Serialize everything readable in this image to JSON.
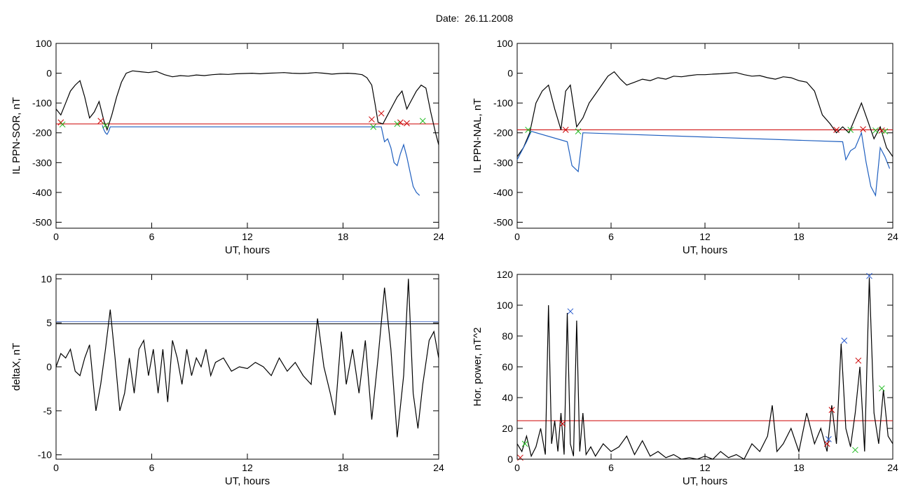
{
  "page": {
    "title": "Date:  26.11.2008"
  },
  "chart_data": [
    {
      "id": "il-sor",
      "type": "line",
      "xlabel": "UT, hours",
      "ylabel": "IL PPN-SOR, nT",
      "xlim": [
        0,
        24
      ],
      "ylim": [
        -520,
        100
      ],
      "xticks": [
        "0",
        "6",
        "12",
        "18",
        "24"
      ],
      "yticks": [
        "100",
        "0",
        "-100",
        "-200",
        "-300",
        "-400",
        "-500"
      ],
      "grid": false,
      "threshold": -170,
      "series": [
        {
          "color": "#000000",
          "x": [
            0,
            0.3,
            0.6,
            0.9,
            1.2,
            1.5,
            1.8,
            2.1,
            2.4,
            2.7,
            3.0,
            3.2,
            3.5,
            3.8,
            4.1,
            4.4,
            4.8,
            5.3,
            5.8,
            6.3,
            6.8,
            7.3,
            7.8,
            8.3,
            8.8,
            9.3,
            9.8,
            10.3,
            10.8,
            11.3,
            11.8,
            12.3,
            12.8,
            13.3,
            13.8,
            14.3,
            14.8,
            15.3,
            15.8,
            16.3,
            16.8,
            17.3,
            17.8,
            18.3,
            18.8,
            19.2,
            19.5,
            19.8,
            20.0,
            20.2,
            20.5,
            20.8,
            21.1,
            21.4,
            21.7,
            22.0,
            22.3,
            22.6,
            22.9,
            23.2,
            23.5,
            23.8,
            24.0
          ],
          "y": [
            -120,
            -140,
            -100,
            -60,
            -40,
            -25,
            -80,
            -150,
            -130,
            -95,
            -160,
            -190,
            -140,
            -80,
            -30,
            0,
            8,
            5,
            2,
            6,
            -5,
            -12,
            -8,
            -10,
            -6,
            -8,
            -5,
            -3,
            -4,
            -2,
            -1,
            0,
            -2,
            0,
            1,
            2,
            0,
            -1,
            0,
            2,
            0,
            -3,
            -1,
            0,
            -2,
            -5,
            -15,
            -40,
            -100,
            -165,
            -170,
            -140,
            -110,
            -80,
            -60,
            -120,
            -90,
            -60,
            -40,
            -50,
            -130,
            -200,
            -240
          ]
        },
        {
          "color": "#1f5fbf",
          "x": [
            2.9,
            3.0,
            3.1,
            3.2,
            3.3,
            3.4,
            20.4,
            20.6,
            20.8,
            21.0,
            21.2,
            21.4,
            21.6,
            21.8,
            22.0,
            22.2,
            22.4,
            22.6,
            22.8
          ],
          "y": [
            -175,
            -190,
            -200,
            -205,
            -195,
            -180,
            -180,
            -230,
            -220,
            -250,
            -300,
            -310,
            -270,
            -240,
            -280,
            -330,
            -380,
            -400,
            -410
          ]
        }
      ],
      "markers_red": {
        "x": [
          0.3,
          2.8,
          19.8,
          20.4,
          21.6,
          22.0
        ],
        "y": [
          -165,
          -160,
          -155,
          -135,
          -165,
          -168
        ]
      },
      "markers_green": {
        "x": [
          0.4,
          3.1,
          19.9,
          21.4,
          23.0
        ],
        "y": [
          -172,
          -175,
          -180,
          -170,
          -160
        ]
      }
    },
    {
      "id": "il-nal",
      "type": "line",
      "xlabel": "UT, hours",
      "ylabel": "IL PPN-NAL, nT",
      "xlim": [
        0,
        24
      ],
      "ylim": [
        -520,
        100
      ],
      "xticks": [
        "0",
        "6",
        "12",
        "18",
        "24"
      ],
      "yticks": [
        "100",
        "0",
        "-100",
        "-200",
        "-300",
        "-400",
        "-500"
      ],
      "grid": false,
      "threshold": -190,
      "series": [
        {
          "color": "#000000",
          "x": [
            0,
            0.4,
            0.8,
            1.2,
            1.6,
            2.0,
            2.4,
            2.8,
            3.1,
            3.4,
            3.8,
            4.2,
            4.6,
            5.0,
            5.4,
            5.8,
            6.2,
            6.6,
            7.0,
            7.5,
            8.0,
            8.5,
            9.0,
            9.5,
            10.0,
            10.5,
            11.0,
            11.5,
            12.0,
            12.5,
            13.0,
            13.5,
            14.0,
            14.5,
            15.0,
            15.5,
            16.0,
            16.5,
            17.0,
            17.5,
            18.0,
            18.5,
            19.0,
            19.5,
            20.0,
            20.4,
            20.8,
            21.2,
            21.6,
            22.0,
            22.4,
            22.8,
            23.2,
            23.6,
            24.0
          ],
          "y": [
            -280,
            -250,
            -200,
            -100,
            -60,
            -40,
            -120,
            -190,
            -60,
            -40,
            -180,
            -150,
            -100,
            -70,
            -40,
            -10,
            5,
            -20,
            -40,
            -30,
            -20,
            -25,
            -15,
            -20,
            -10,
            -12,
            -8,
            -5,
            -5,
            -3,
            -2,
            0,
            2,
            -5,
            -10,
            -8,
            -15,
            -20,
            -12,
            -15,
            -25,
            -30,
            -60,
            -140,
            -170,
            -200,
            -180,
            -200,
            -150,
            -100,
            -160,
            -220,
            -180,
            -250,
            -280
          ]
        },
        {
          "color": "#1f5fbf",
          "x": [
            0.0,
            0.3,
            0.6,
            0.9,
            3.2,
            3.5,
            3.9,
            4.2,
            20.8,
            21.0,
            21.3,
            21.6,
            22.0,
            22.3,
            22.6,
            22.9,
            23.2,
            23.5,
            23.8
          ],
          "y": [
            -290,
            -260,
            -230,
            -195,
            -230,
            -310,
            -330,
            -200,
            -230,
            -290,
            -260,
            -250,
            -200,
            -300,
            -380,
            -410,
            -250,
            -280,
            -320
          ]
        }
      ],
      "markers_red": {
        "x": [
          3.1,
          20.4,
          22.1,
          23.3
        ],
        "y": [
          -190,
          -190,
          -188,
          -192
        ]
      },
      "markers_green": {
        "x": [
          0.7,
          3.9,
          21.3,
          22.9,
          23.5
        ],
        "y": [
          -190,
          -195,
          -190,
          -192,
          -195
        ]
      }
    },
    {
      "id": "deltax",
      "type": "line",
      "xlabel": "UT, hours",
      "ylabel": "deltaX, nT",
      "xlim": [
        0,
        24
      ],
      "ylim": [
        -10.5,
        10.5
      ],
      "xticks": [
        "0",
        "6",
        "12",
        "18",
        "24"
      ],
      "yticks": [
        "10",
        "5",
        "0",
        "-5",
        "-10"
      ],
      "grid": false,
      "threshold": 5,
      "threshold_color": "#000000",
      "series": [
        {
          "color": "#000000",
          "x": [
            0,
            0.3,
            0.6,
            0.9,
            1.2,
            1.5,
            1.8,
            2.1,
            2.5,
            2.8,
            3.1,
            3.4,
            3.7,
            4.0,
            4.3,
            4.6,
            4.9,
            5.2,
            5.5,
            5.8,
            6.1,
            6.4,
            6.7,
            7.0,
            7.3,
            7.6,
            7.9,
            8.2,
            8.5,
            8.8,
            9.1,
            9.4,
            9.7,
            10.0,
            10.5,
            11.0,
            11.5,
            12.0,
            12.5,
            13.0,
            13.5,
            14.0,
            14.5,
            15.0,
            15.5,
            16.0,
            16.4,
            16.8,
            17.2,
            17.5,
            17.9,
            18.2,
            18.6,
            19.0,
            19.4,
            19.8,
            20.2,
            20.6,
            21.0,
            21.4,
            21.8,
            22.1,
            22.4,
            22.7,
            23.0,
            23.4,
            23.7,
            24.0
          ],
          "y": [
            0,
            1.5,
            1,
            2,
            -0.5,
            -1,
            1,
            2.5,
            -5,
            -2,
            2,
            6.5,
            1,
            -5,
            -3,
            1,
            -3,
            2,
            3,
            -1,
            2,
            -3,
            2,
            -4,
            3,
            1,
            -2,
            2,
            -1,
            1,
            0,
            2,
            -1,
            0.5,
            1,
            -0.5,
            0,
            -0.2,
            0.5,
            0,
            -1,
            1,
            -0.5,
            0.5,
            -1,
            -2,
            5.5,
            0,
            -3,
            -5.5,
            4,
            -2,
            2,
            -3,
            3,
            -6,
            1,
            9,
            2,
            -8,
            -1,
            10,
            -3,
            -7,
            -2,
            3,
            4,
            1
          ]
        }
      ],
      "markers_red": {
        "x": [],
        "y": []
      },
      "markers_green": {
        "x": [],
        "y": []
      }
    },
    {
      "id": "hor-power",
      "type": "line",
      "xlabel": "UT, hours",
      "ylabel": "Hor. power, nT^2",
      "xlim": [
        0,
        24
      ],
      "ylim": [
        0,
        120
      ],
      "xticks": [
        "0",
        "6",
        "12",
        "18",
        "24"
      ],
      "yticks": [
        "120",
        "100",
        "80",
        "60",
        "40",
        "20",
        "0"
      ],
      "grid": false,
      "threshold": 25,
      "series": [
        {
          "color": "#000000",
          "x": [
            0,
            0.3,
            0.6,
            0.9,
            1.2,
            1.5,
            1.8,
            2.0,
            2.2,
            2.4,
            2.6,
            2.8,
            3.0,
            3.2,
            3.4,
            3.6,
            3.8,
            4.0,
            4.2,
            4.4,
            4.7,
            5.0,
            5.5,
            6.0,
            6.5,
            7.0,
            7.5,
            8.0,
            8.5,
            9.0,
            9.5,
            10.0,
            10.5,
            11.0,
            11.5,
            12.0,
            12.5,
            13.0,
            13.5,
            14.0,
            14.5,
            15.0,
            15.5,
            16.0,
            16.3,
            16.6,
            17.0,
            17.5,
            18.0,
            18.5,
            19.0,
            19.4,
            19.8,
            20.1,
            20.4,
            20.7,
            21.0,
            21.3,
            21.6,
            21.9,
            22.2,
            22.5,
            22.8,
            23.1,
            23.4,
            23.7,
            24.0
          ],
          "y": [
            10,
            5,
            15,
            2,
            8,
            20,
            3,
            100,
            10,
            25,
            5,
            30,
            3,
            95,
            10,
            2,
            90,
            5,
            30,
            3,
            8,
            2,
            10,
            5,
            8,
            15,
            3,
            12,
            2,
            5,
            1,
            3,
            0,
            1,
            0,
            2,
            0,
            5,
            1,
            3,
            0,
            10,
            5,
            15,
            35,
            5,
            10,
            20,
            5,
            30,
            10,
            20,
            5,
            35,
            10,
            75,
            20,
            8,
            30,
            60,
            5,
            118,
            30,
            10,
            45,
            15,
            10
          ]
        }
      ],
      "markers_red": {
        "x": [
          0.2,
          2.9,
          20.1,
          21.8,
          19.8
        ],
        "y": [
          1,
          23,
          32,
          64,
          10
        ]
      },
      "markers_green": {
        "x": [
          0.5,
          21.6,
          23.3
        ],
        "y": [
          10,
          6,
          46
        ]
      },
      "markers_blue": {
        "x": [
          3.4,
          20.9,
          22.5,
          19.9
        ],
        "y": [
          96,
          77,
          119,
          13
        ]
      }
    }
  ]
}
